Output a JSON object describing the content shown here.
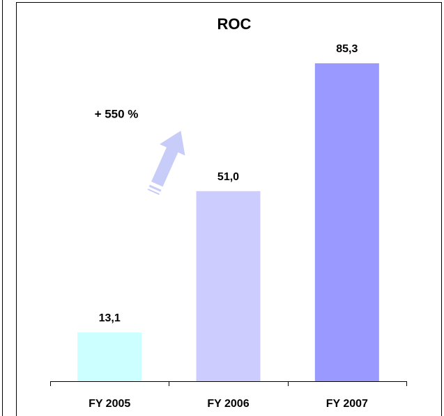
{
  "chart_data": {
    "type": "bar",
    "title": "ROC",
    "categories": [
      "FY 2005",
      "FY 2006",
      "FY 2007"
    ],
    "values": [
      13.1,
      51.0,
      85.3
    ],
    "value_labels": [
      "13,1",
      "51,0",
      "85,3"
    ],
    "colors": [
      "#ccffff",
      "#ccccff",
      "#9999ff"
    ],
    "annotation": "+ 550 %"
  }
}
